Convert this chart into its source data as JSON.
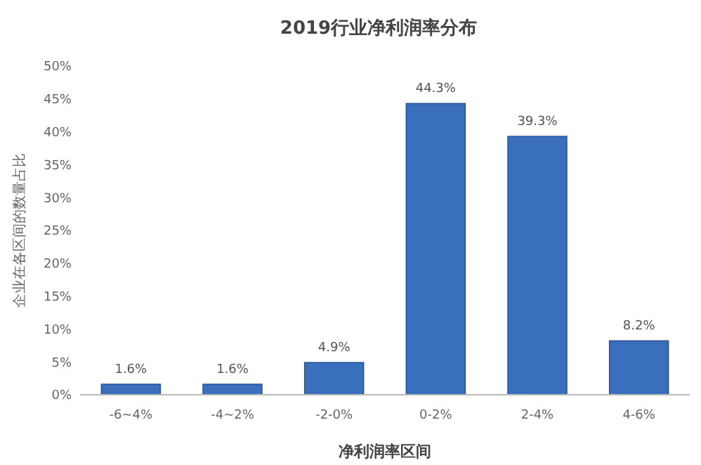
{
  "chart_data": {
    "type": "bar",
    "title": "2019行业净利润率分布",
    "xlabel": "净利润率区间",
    "ylabel": "企业在各区间的数量占比",
    "categories": [
      "-6~4%",
      "-4~2%",
      "-2-0%",
      "0-2%",
      "2-4%",
      "4-6%"
    ],
    "values": [
      1.6,
      1.6,
      4.9,
      44.3,
      39.3,
      8.2
    ],
    "value_labels": [
      "1.6%",
      "1.6%",
      "4.9%",
      "44.3%",
      "39.3%",
      "8.2%"
    ],
    "color": "#3a6fbd",
    "ylim": [
      0,
      50
    ],
    "yticks": [
      {
        "value": 0,
        "label": "0%"
      },
      {
        "value": 5,
        "label": "5%"
      },
      {
        "value": 10,
        "label": "10%"
      },
      {
        "value": 15,
        "label": "15%"
      },
      {
        "value": 20,
        "label": "20%"
      },
      {
        "value": 25,
        "label": "25%"
      },
      {
        "value": 30,
        "label": "30%"
      },
      {
        "value": 35,
        "label": "35%"
      },
      {
        "value": 40,
        "label": "40%"
      },
      {
        "value": 45,
        "label": "45%"
      },
      {
        "value": 50,
        "label": "50%"
      }
    ],
    "grid": false
  }
}
